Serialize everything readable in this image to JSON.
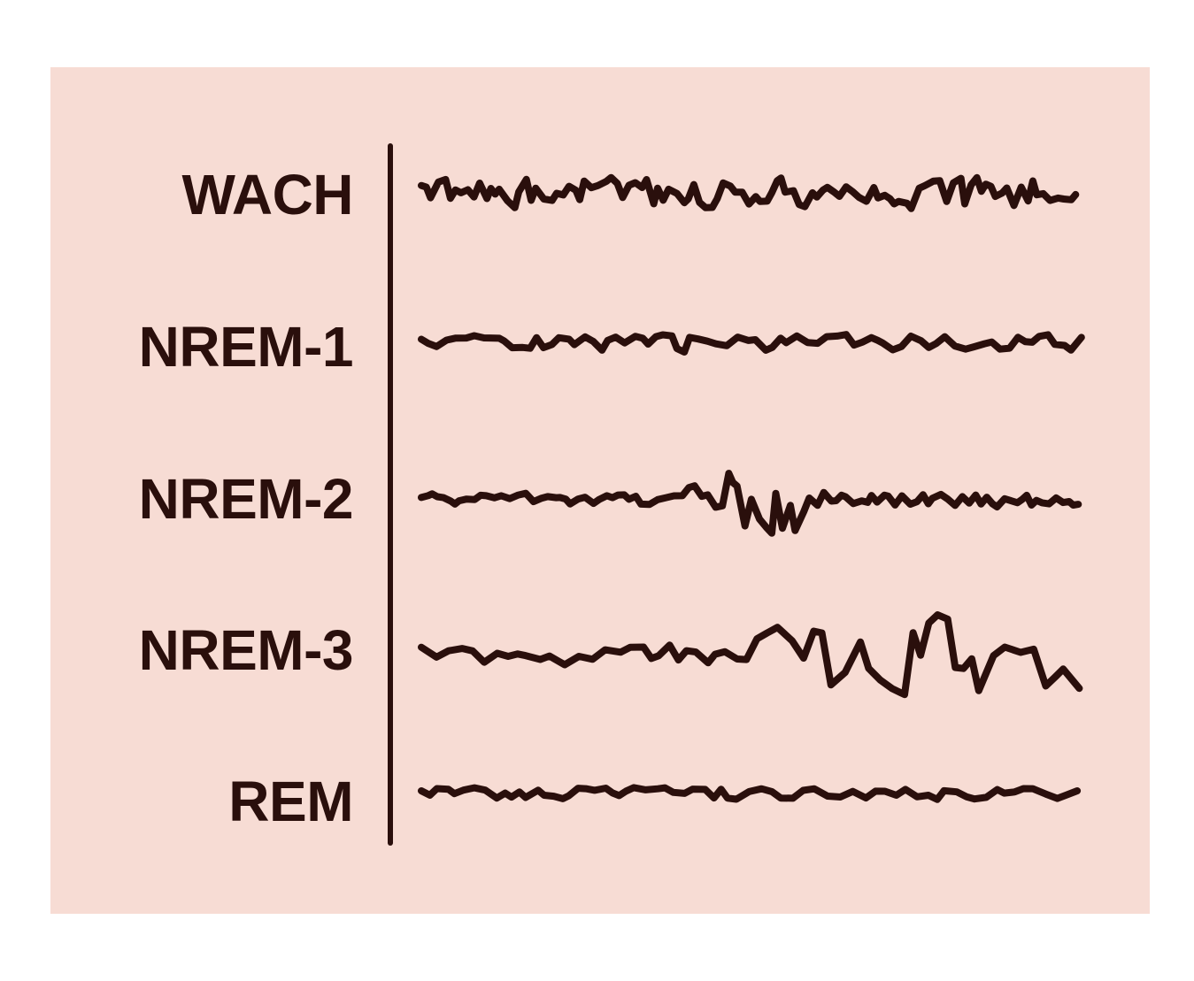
{
  "stages": [
    {
      "label": "WACH",
      "color": "#2a0f0c"
    },
    {
      "label": "NREM-1",
      "color": "#2a0f0c"
    },
    {
      "label": "NREM-2",
      "color": "#2a0f0c"
    },
    {
      "label": "NREM-3",
      "color": "#2a0f0c"
    },
    {
      "label": "REM",
      "color": "#2a0f0c"
    }
  ],
  "colors": {
    "background_panel": "#f7dcd4",
    "ink": "#2a0f0c"
  }
}
